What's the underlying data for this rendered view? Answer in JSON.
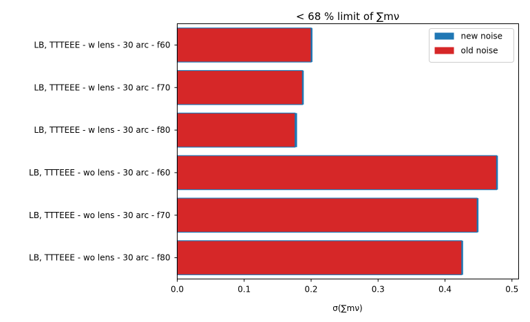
{
  "chart_data": {
    "type": "bar",
    "orientation": "horizontal",
    "title": "< 68 % limit of ∑mν",
    "xlabel": "σ(∑mν)",
    "ylabel": "",
    "xlim": [
      0.0,
      0.51
    ],
    "xticks": [
      0.0,
      0.1,
      0.2,
      0.3,
      0.4,
      0.5
    ],
    "xtick_labels": [
      "0.0",
      "0.1",
      "0.2",
      "0.3",
      "0.4",
      "0.5"
    ],
    "grid": false,
    "legend_position": "top-right",
    "categories": [
      "LB, TTTEEE - w lens - 30 arc - f60",
      "LB, TTTEEE - w lens - 30 arc - f70",
      "LB, TTTEEE - w lens - 30 arc - f80",
      "LB, TTTEEE - wo lens - 30 arc - f60",
      "LB, TTTEEE - wo lens - 30 arc - f70",
      "LB, TTTEEE - wo lens - 30 arc - f80"
    ],
    "series": [
      {
        "name": "new noise",
        "color": "#1f77b4",
        "values": [
          0.202,
          0.189,
          0.179,
          0.479,
          0.45,
          0.427
        ]
      },
      {
        "name": "old noise",
        "color": "#d62728",
        "values": [
          0.2,
          0.187,
          0.176,
          0.477,
          0.448,
          0.425
        ]
      }
    ]
  }
}
